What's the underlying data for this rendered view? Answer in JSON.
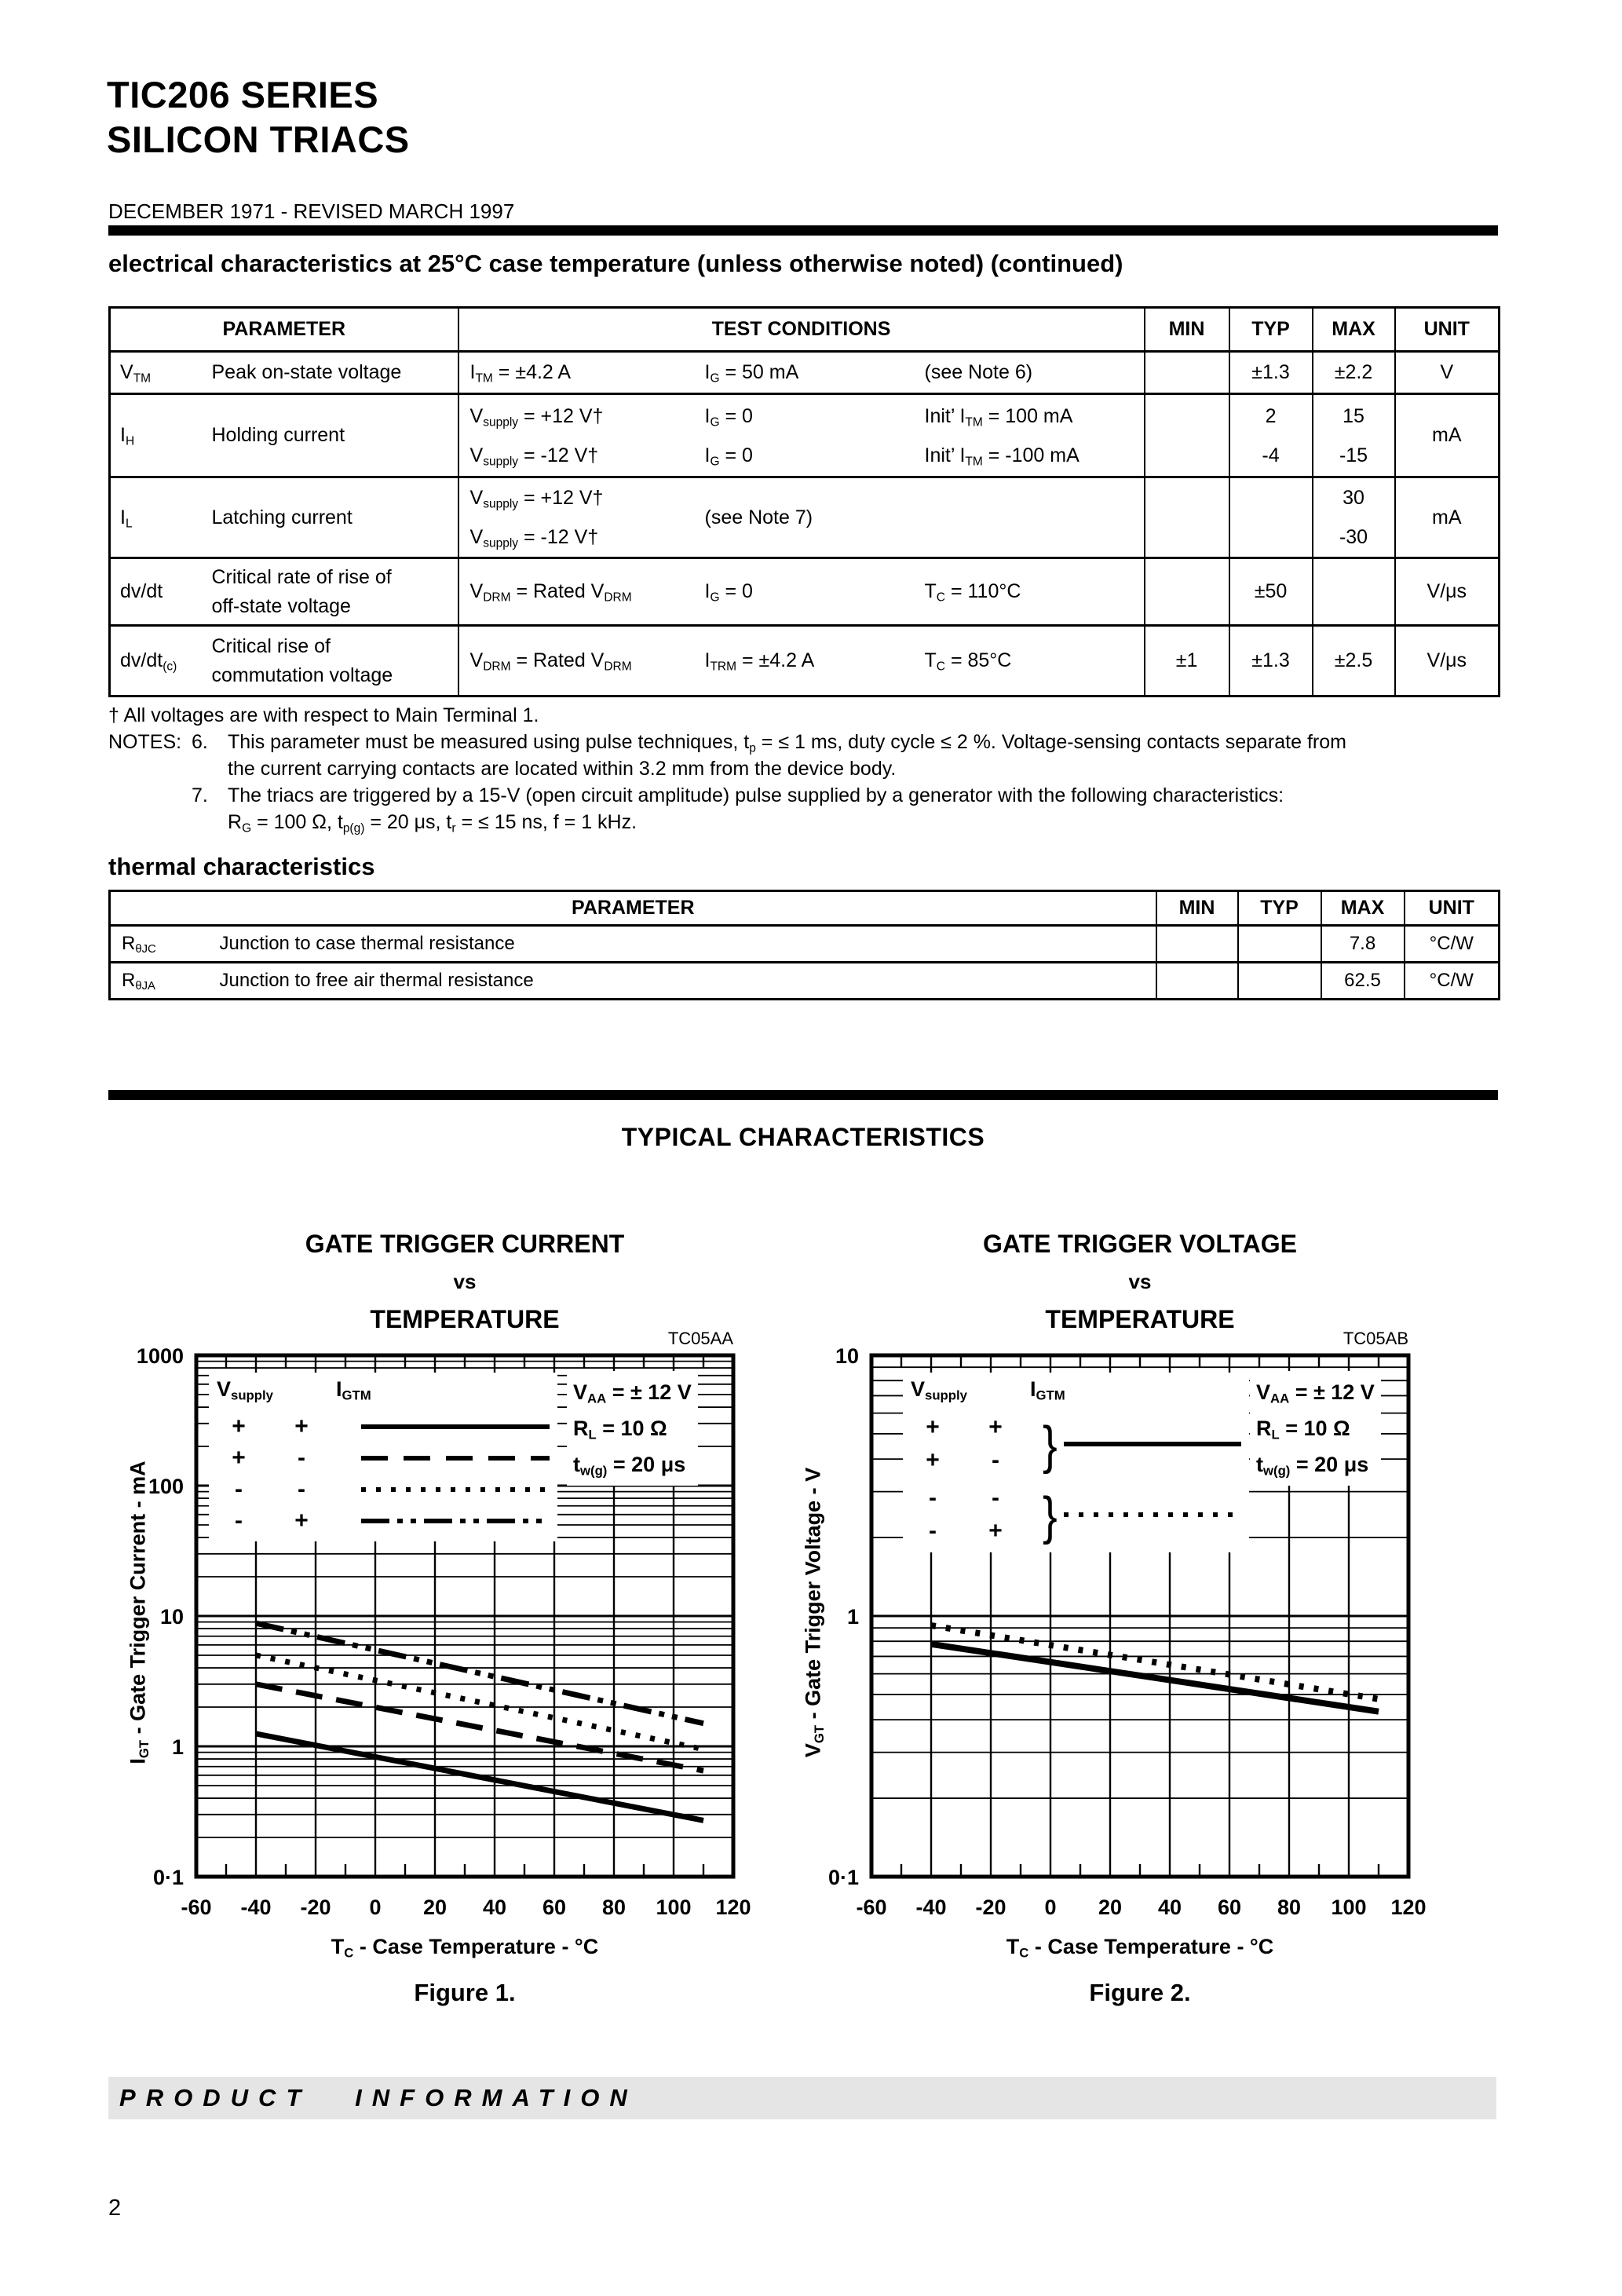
{
  "colors": {
    "paper": "#ffffff",
    "ink": "#000000",
    "footer_bar_bg": "#e5e5e5"
  },
  "page": {
    "title_line1": "TIC206 SERIES",
    "title_line2": "SILICON TRIACS",
    "date_line": "DECEMBER 1971 - REVISED MARCH 1997",
    "footer_bar": "PRODUCT INFORMATION",
    "page_number": "2"
  },
  "elec": {
    "heading": "electrical characteristics at 25°C case temperature (unless otherwise noted) (continued)",
    "headers": {
      "parameter": "PARAMETER",
      "test_conditions": "TEST CONDITIONS",
      "min": "MIN",
      "typ": "TYP",
      "max": "MAX",
      "unit": "UNIT"
    },
    "rows": [
      {
        "symbol": "V_{TM}",
        "name": "Peak on-state voltage",
        "cond1": "I_{TM} = ±4.2 A",
        "cond2": "I_{G} = 50 mA",
        "cond3": "(see Note 6)",
        "min": "",
        "typ": "±1.3",
        "max": "±2.2",
        "unit": "V"
      },
      {
        "symbol": "I_{H}",
        "name": "Holding current",
        "cond1a": "V_{supply} = +12 V†",
        "cond1b": "V_{supply} =  -12 V†",
        "cond2a": "I_{G} = 0",
        "cond2b": "I_{G} = 0",
        "cond3a": "Init’ I_{TM} =  100 mA",
        "cond3b": "Init’ I_{TM} = -100 mA",
        "typ_a": "2",
        "typ_b": "-4",
        "max_a": "15",
        "max_b": "-15",
        "unit": "mA"
      },
      {
        "symbol": "I_{L}",
        "name": "Latching current",
        "cond1a": "V_{supply} = +12 V†",
        "cond1b": "V_{supply} =  -12 V†",
        "cond23": "(see Note 7)",
        "max_a": "30",
        "max_b": "-30",
        "unit": "mA"
      },
      {
        "symbol": "dv/dt",
        "name_a": "Critical rate of rise of",
        "name_b": "off-state voltage",
        "cond1": "V_{DRM} = Rated V_{DRM}",
        "cond2": "I_{G} = 0",
        "cond3": "T_{C} = 110°C",
        "min": "",
        "typ": "±50",
        "max": "",
        "unit": "V/μs"
      },
      {
        "symbol": "dv/dt_{(c)}",
        "name_a": "Critical rise of",
        "name_b": "commutation voltage",
        "cond1": "V_{DRM} = Rated V_{DRM}",
        "cond2": "I_{TRM} = ±4.2 A",
        "cond3": "T_{C} = 85°C",
        "min": "±1",
        "typ": "±1.3",
        "max": "±2.5",
        "unit": "V/μs"
      }
    ]
  },
  "notes": {
    "dagger": "† All voltages are with respect to Main Terminal 1.",
    "label": "NOTES:",
    "n6_num": "6.",
    "n6_line1": "This parameter must be measured using pulse techniques, t_{p} = ≤ 1 ms, duty cycle ≤ 2 %. Voltage-sensing contacts separate from",
    "n6_line2": "the current carrying contacts are located within 3.2 mm from the device body.",
    "n7_num": "7.",
    "n7_line1": "The triacs are triggered by a 15-V (open circuit amplitude) pulse supplied by a generator with the following characteristics:",
    "n7_line2": "R_{G} = 100 Ω, t_{p(g)} = 20 μs, t_{r} = ≤ 15 ns, f = 1 kHz."
  },
  "thermal": {
    "heading": "thermal characteristics",
    "headers": {
      "parameter": "PARAMETER",
      "min": "MIN",
      "typ": "TYP",
      "max": "MAX",
      "unit": "UNIT"
    },
    "rows": [
      {
        "symbol": "R_{θJC}",
        "name": "Junction to case thermal resistance",
        "min": "",
        "typ": "",
        "max": "7.8",
        "unit": "°C/W"
      },
      {
        "symbol": "R_{θJA}",
        "name": "Junction to free air thermal resistance",
        "min": "",
        "typ": "",
        "max": "62.5",
        "unit": "°C/W"
      }
    ]
  },
  "typical_heading": "TYPICAL CHARACTERISTICS",
  "chart_data": [
    {
      "id": "fig1",
      "type": "line",
      "code": "TC05AA",
      "title_lines": [
        "GATE TRIGGER CURRENT",
        "vs",
        "TEMPERATURE"
      ],
      "xlabel": "T_{C} - Case Temperature - °C",
      "ylabel": "I_{GT} - Gate Trigger Current - mA",
      "caption": "Figure 1.",
      "xlim": [
        -60,
        120
      ],
      "ylim": [
        0.1,
        1000
      ],
      "log_y": true,
      "grid": true,
      "x_ticks": [
        -60,
        -40,
        -20,
        0,
        20,
        40,
        60,
        80,
        100,
        120
      ],
      "x_tick_labels": [
        "-60",
        "-40",
        "-20",
        "0",
        "20",
        "40",
        "60",
        "80",
        "100",
        "120"
      ],
      "y_ticks": [
        1000,
        100,
        10,
        1,
        0.1
      ],
      "y_tick_labels": [
        "1000",
        "100",
        "10",
        "1",
        "0·1"
      ],
      "legend": {
        "col1_header": "V_{supply}",
        "col2_header": "I_{GTM}",
        "rows": [
          {
            "vsupply": "+",
            "igtm": "+",
            "style": "solid"
          },
          {
            "vsupply": "+",
            "igtm": "-",
            "style": "dashed"
          },
          {
            "vsupply": "-",
            "igtm": "-",
            "style": "dotted"
          },
          {
            "vsupply": "-",
            "igtm": "+",
            "style": "dashdotdot"
          }
        ]
      },
      "annotation": [
        "V_{AA} = ± 12 V",
        "R_{L} = 10 Ω",
        "t_{w(g)} = 20 μs"
      ],
      "series": [
        {
          "name": "Vsupply + / IGTM +",
          "style": "solid",
          "x": [
            -40,
            110
          ],
          "y": [
            1.25,
            0.27
          ]
        },
        {
          "name": "Vsupply + / IGTM -",
          "style": "dashed",
          "x": [
            -40,
            110
          ],
          "y": [
            3.0,
            0.65
          ]
        },
        {
          "name": "Vsupply - / IGTM -",
          "style": "dotted",
          "x": [
            -40,
            110
          ],
          "y": [
            5.0,
            0.95
          ]
        },
        {
          "name": "Vsupply - / IGTM +",
          "style": "dashdotdot",
          "x": [
            -40,
            110
          ],
          "y": [
            8.8,
            1.5
          ]
        }
      ]
    },
    {
      "id": "fig2",
      "type": "line",
      "code": "TC05AB",
      "title_lines": [
        "GATE TRIGGER VOLTAGE",
        "vs",
        "TEMPERATURE"
      ],
      "xlabel": "T_{C} - Case Temperature - °C",
      "ylabel": "V_{GT} - Gate Trigger Voltage - V",
      "caption": "Figure 2.",
      "xlim": [
        -60,
        120
      ],
      "ylim": [
        0.1,
        10
      ],
      "log_y": true,
      "grid": true,
      "x_ticks": [
        -60,
        -40,
        -20,
        0,
        20,
        40,
        60,
        80,
        100,
        120
      ],
      "x_tick_labels": [
        "-60",
        "-40",
        "-20",
        "0",
        "20",
        "40",
        "60",
        "80",
        "100",
        "120"
      ],
      "y_ticks": [
        10,
        1,
        0.1
      ],
      "y_tick_labels": [
        "10",
        "1",
        "0·1"
      ],
      "legend": {
        "col1_header": "V_{supply}",
        "col2_header": "I_{GTM}",
        "brace": "}",
        "groups": [
          {
            "rows": [
              [
                "+",
                "+"
              ],
              [
                "+",
                "-"
              ]
            ],
            "style": "solid"
          },
          {
            "rows": [
              [
                "-",
                "-"
              ],
              [
                "-",
                "+"
              ]
            ],
            "style": "dotted"
          }
        ]
      },
      "annotation": [
        "V_{AA} = ± 12 V",
        "R_{L} = 10 Ω",
        "t_{w(g)} = 20 μs"
      ],
      "series": [
        {
          "name": "Vsupply +, IGTM + and -",
          "style": "solid",
          "x": [
            -40,
            110
          ],
          "y": [
            0.78,
            0.43
          ]
        },
        {
          "name": "Vsupply -, IGTM - and +",
          "style": "dotted",
          "x": [
            -40,
            110
          ],
          "y": [
            0.92,
            0.48
          ]
        }
      ]
    }
  ]
}
